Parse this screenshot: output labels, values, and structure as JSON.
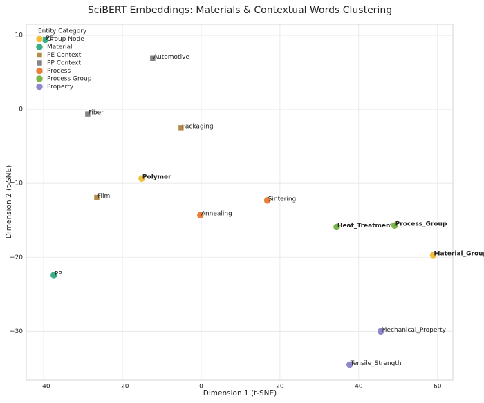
{
  "chart_data": {
    "type": "scatter",
    "title": "SciBERT Embeddings: Materials & Contextual Words Clustering",
    "x_label": "Dimension 1 (t-SNE)",
    "y_label": "Dimension 2 (t-SNE)",
    "legend_title": "Entity Category",
    "legend": "upper left",
    "grid": true,
    "xlim": [
      -44.4,
      63.9
    ],
    "ylim": [
      -36.6,
      11.5
    ],
    "xticks": [
      {
        "value": -40,
        "label": "−40"
      },
      {
        "value": -20,
        "label": "−20"
      },
      0,
      20,
      40,
      60
    ],
    "yticks": [
      10,
      0,
      {
        "value": -10,
        "label": "−10"
      },
      {
        "value": -20,
        "label": "−20"
      },
      {
        "value": -30,
        "label": "−30"
      }
    ],
    "series": [
      {
        "name": "Group Node",
        "color": "#f2bf3c",
        "marker": "circle",
        "bold": true,
        "labels": [
          "Polymer",
          "Material_Group"
        ],
        "x": [
          -15.1,
          58.9
        ],
        "y": [
          -9.35,
          -19.7
        ]
      },
      {
        "name": "Material",
        "color": "#3aae87",
        "marker": "circle",
        "bold": false,
        "labels": [
          "PE",
          "PP"
        ],
        "x": [
          -39.6,
          -37.4
        ],
        "y": [
          9.4,
          -22.4
        ]
      },
      {
        "name": "PE Context",
        "color": "#b38c4a",
        "marker": "square",
        "bold": false,
        "labels": [
          "Packaging",
          "Film"
        ],
        "x": [
          -5.1,
          -26.5
        ],
        "y": [
          -2.5,
          -11.9
        ]
      },
      {
        "name": "PP Context",
        "color": "#858585",
        "marker": "square",
        "bold": false,
        "labels": [
          "Automotive",
          "Fiber"
        ],
        "x": [
          -12.3,
          -28.8
        ],
        "y": [
          6.9,
          -0.65
        ]
      },
      {
        "name": "Process",
        "color": "#e8803c",
        "marker": "circle",
        "bold": false,
        "labels": [
          "Annealing",
          "Sintering"
        ],
        "x": [
          -0.2,
          16.8
        ],
        "y": [
          -14.3,
          -12.3
        ]
      },
      {
        "name": "Process Group",
        "color": "#7ab648",
        "marker": "circle",
        "bold": true,
        "labels": [
          "Heat_Treatment",
          "Process_Group"
        ],
        "x": [
          34.4,
          49.1
        ],
        "y": [
          -15.9,
          -15.7
        ]
      },
      {
        "name": "Property",
        "color": "#8f89cc",
        "marker": "circle",
        "bold": false,
        "labels": [
          "Mechanical_Property",
          "Tensile_Strength"
        ],
        "x": [
          45.6,
          37.7
        ],
        "y": [
          -30.0,
          -34.5
        ]
      }
    ]
  }
}
